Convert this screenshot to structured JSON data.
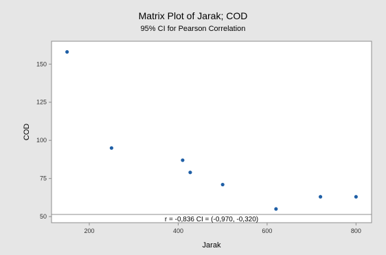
{
  "chart_data": {
    "type": "scatter",
    "title": "Matrix Plot of Jarak; COD",
    "subtitle": "95% CI for Pearson Correlation",
    "xlabel": "Jarak",
    "ylabel": "COD",
    "xlim": [
      115,
      835
    ],
    "ylim": [
      46,
      165
    ],
    "xticks": [
      200,
      400,
      600,
      800
    ],
    "yticks": [
      50,
      75,
      100,
      125,
      150
    ],
    "grid": false,
    "points": [
      {
        "x": 150,
        "y": 158
      },
      {
        "x": 250,
        "y": 95
      },
      {
        "x": 410,
        "y": 87
      },
      {
        "x": 427,
        "y": 79
      },
      {
        "x": 500,
        "y": 71
      },
      {
        "x": 620,
        "y": 55
      },
      {
        "x": 720,
        "y": 63
      },
      {
        "x": 800,
        "y": 63
      }
    ],
    "annotation": "r = -0,836  CI = (-0,970, -0,320)",
    "colors": {
      "background": "#e6e6e6",
      "plot_background": "#ffffff",
      "marker": "#1f5fa6",
      "axis": "#8c8c8c"
    }
  }
}
